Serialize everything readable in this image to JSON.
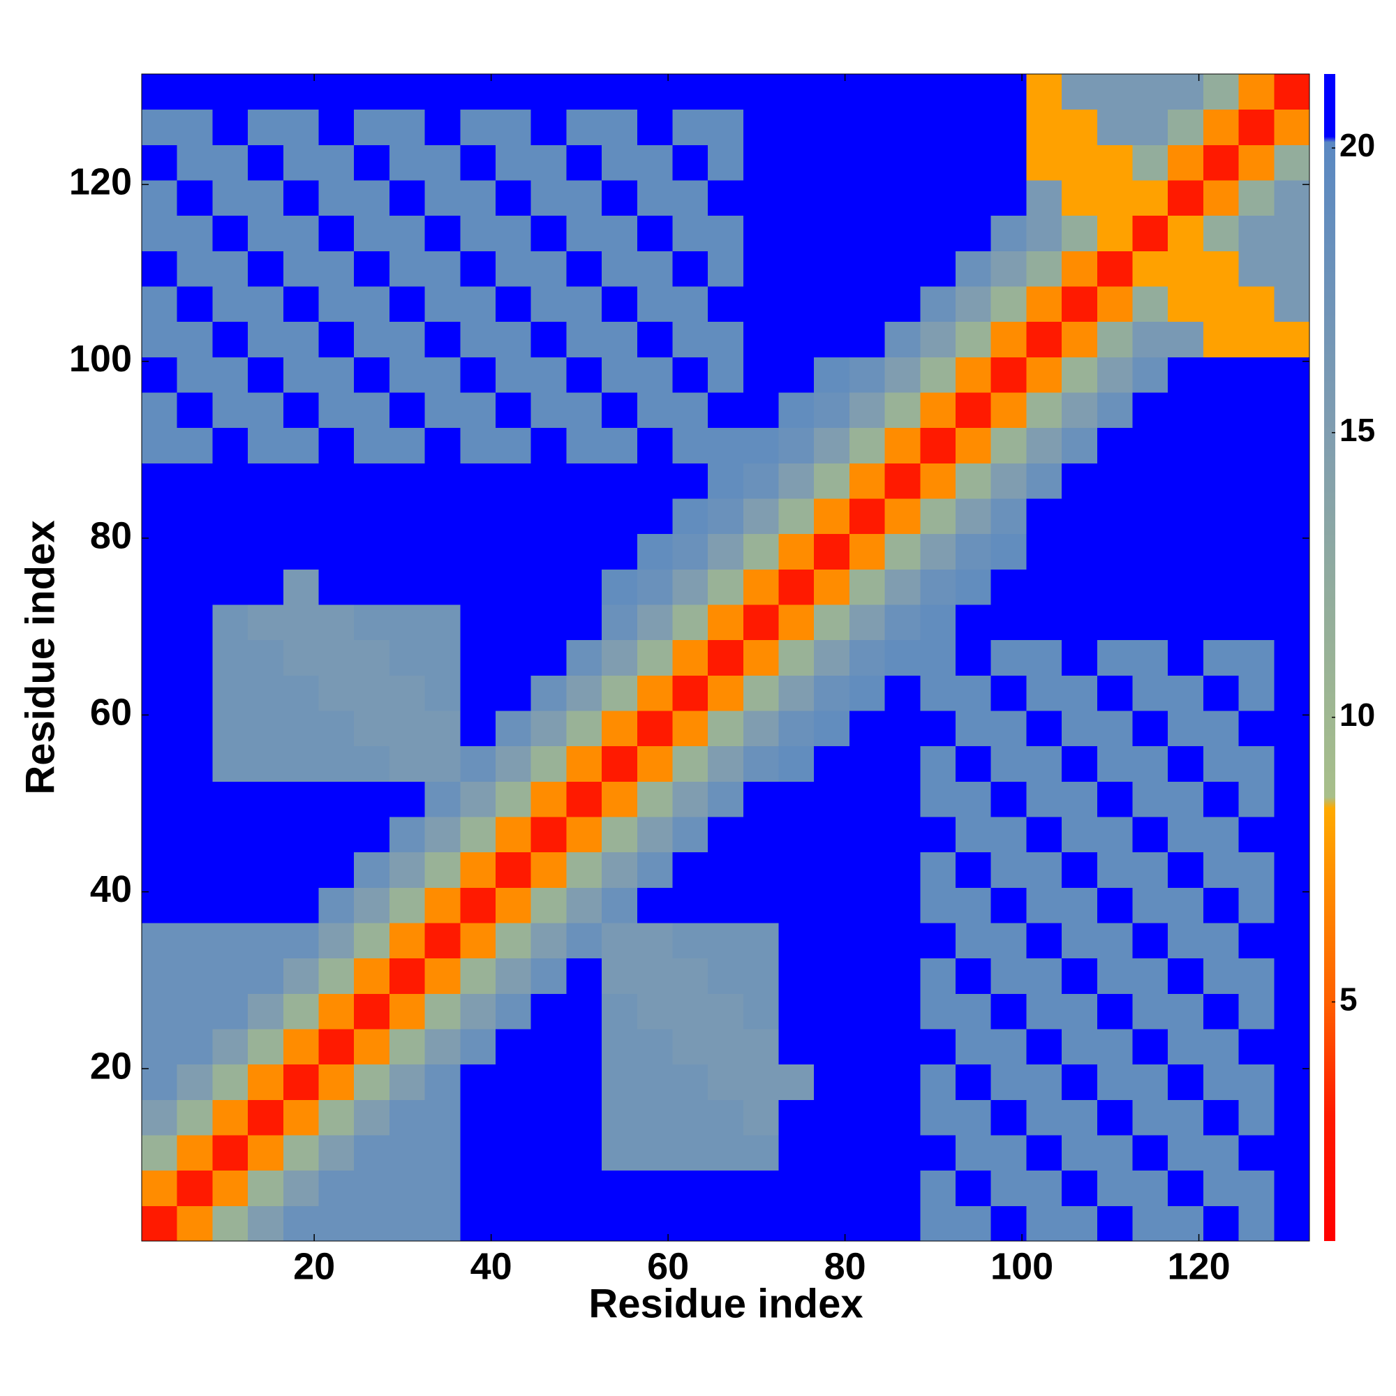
{
  "chart_data": {
    "type": "heatmap",
    "xlabel": "Residue index",
    "ylabel": "Residue index",
    "xlim": [
      0.5,
      132.5
    ],
    "ylim": [
      0.5,
      132.5
    ],
    "xticks": [
      20,
      40,
      60,
      80,
      100,
      120
    ],
    "yticks": [
      20,
      40,
      60,
      80,
      100,
      120
    ],
    "clim": [
      0.8,
      21.3
    ],
    "cticks": [
      5,
      10,
      15,
      20
    ],
    "colorscale": [
      {
        "value": 0.8,
        "color": "#ff0000"
      },
      {
        "value": 3,
        "color": "#ff1a00"
      },
      {
        "value": 5,
        "color": "#ff6000"
      },
      {
        "value": 8.4,
        "color": "#ffaa00"
      },
      {
        "value": 8.6,
        "color": "#a8bf8a"
      },
      {
        "value": 12,
        "color": "#93ad9c"
      },
      {
        "value": 15,
        "color": "#809db0"
      },
      {
        "value": 20.1,
        "color": "#5a88c2"
      },
      {
        "value": 20.2,
        "color": "#0000ff"
      },
      {
        "value": 21.3,
        "color": "#0000ff"
      }
    ],
    "x_bins": [
      0.5,
      4.5,
      8.5,
      12.5,
      16.5,
      20.5,
      24.5,
      28.5,
      32.5,
      36.5,
      40.5,
      44.5,
      48.5,
      52.5,
      56.5,
      60.5,
      64.5,
      68.5,
      72.5,
      76.5,
      80.5,
      84.5,
      88.5,
      92.5,
      96.5,
      100.5,
      104.5,
      108.5,
      112.5,
      116.5,
      120.5,
      124.5,
      128.5,
      132.5
    ],
    "y_bins": [
      0.5,
      4.5,
      8.5,
      12.5,
      16.5,
      20.5,
      24.5,
      28.5,
      32.5,
      36.5,
      40.5,
      44.5,
      48.5,
      52.5,
      56.5,
      60.5,
      64.5,
      68.5,
      72.5,
      76.5,
      80.5,
      84.5,
      88.5,
      92.5,
      96.5,
      100.5,
      104.5,
      108.5,
      112.5,
      116.5,
      120.5,
      124.5,
      128.5,
      132.5
    ],
    "z": [
      [
        3,
        7,
        11,
        15,
        18,
        18,
        18,
        18,
        18,
        21,
        21,
        21,
        21,
        21,
        21,
        21,
        21,
        21,
        21,
        21,
        21,
        21,
        19,
        19,
        21,
        19,
        19,
        21,
        19,
        19,
        21,
        19,
        21
      ],
      [
        7,
        3,
        7,
        11,
        15,
        18,
        18,
        18,
        18,
        21,
        21,
        21,
        21,
        21,
        21,
        21,
        21,
        21,
        21,
        21,
        21,
        21,
        19,
        21,
        19,
        19,
        21,
        19,
        19,
        21,
        19,
        19,
        21
      ],
      [
        11,
        7,
        3,
        7,
        11,
        15,
        18,
        18,
        18,
        21,
        21,
        21,
        21,
        17,
        17,
        17,
        17,
        17,
        21,
        21,
        21,
        21,
        21,
        19,
        19,
        21,
        19,
        19,
        21,
        19,
        19,
        21,
        21
      ],
      [
        15,
        11,
        7,
        3,
        7,
        11,
        15,
        18,
        18,
        21,
        21,
        21,
        21,
        17,
        17,
        17,
        17,
        16,
        21,
        21,
        21,
        21,
        19,
        19,
        21,
        19,
        19,
        21,
        19,
        19,
        21,
        19,
        21
      ],
      [
        18,
        15,
        11,
        7,
        3,
        7,
        11,
        15,
        18,
        21,
        21,
        21,
        21,
        17,
        17,
        17,
        16,
        16,
        16,
        21,
        21,
        21,
        19,
        21,
        19,
        19,
        21,
        19,
        19,
        21,
        19,
        19,
        21
      ],
      [
        18,
        18,
        15,
        11,
        7,
        3,
        7,
        11,
        15,
        18,
        21,
        21,
        21,
        17,
        17,
        16,
        16,
        16,
        21,
        21,
        21,
        21,
        21,
        19,
        19,
        21,
        19,
        19,
        21,
        19,
        19,
        21,
        21
      ],
      [
        18,
        18,
        18,
        15,
        11,
        7,
        3,
        7,
        11,
        15,
        18,
        21,
        21,
        17,
        16,
        16,
        16,
        17,
        21,
        21,
        21,
        21,
        19,
        19,
        21,
        19,
        19,
        21,
        19,
        19,
        21,
        19,
        21
      ],
      [
        18,
        18,
        18,
        18,
        15,
        11,
        7,
        3,
        7,
        11,
        15,
        18,
        21,
        16,
        16,
        16,
        17,
        17,
        21,
        21,
        21,
        21,
        19,
        21,
        19,
        19,
        21,
        19,
        19,
        21,
        19,
        19,
        21
      ],
      [
        18,
        18,
        18,
        18,
        18,
        15,
        11,
        7,
        3,
        7,
        11,
        15,
        18,
        16,
        16,
        17,
        17,
        17,
        21,
        21,
        21,
        21,
        21,
        19,
        19,
        21,
        19,
        19,
        21,
        19,
        19,
        21,
        21
      ],
      [
        21,
        21,
        21,
        21,
        21,
        18,
        15,
        11,
        7,
        3,
        7,
        11,
        15,
        18,
        21,
        21,
        21,
        21,
        21,
        21,
        21,
        21,
        19,
        19,
        21,
        19,
        19,
        21,
        19,
        19,
        21,
        19,
        21
      ],
      [
        21,
        21,
        21,
        21,
        21,
        21,
        18,
        15,
        11,
        7,
        3,
        7,
        11,
        15,
        18,
        21,
        21,
        21,
        21,
        21,
        21,
        21,
        19,
        21,
        19,
        19,
        21,
        19,
        19,
        21,
        19,
        19,
        21
      ],
      [
        21,
        21,
        21,
        21,
        21,
        21,
        21,
        18,
        15,
        11,
        7,
        3,
        7,
        11,
        15,
        18,
        21,
        21,
        21,
        21,
        21,
        21,
        21,
        19,
        19,
        21,
        19,
        19,
        21,
        19,
        19,
        21,
        21
      ],
      [
        21,
        21,
        21,
        21,
        21,
        21,
        21,
        21,
        18,
        15,
        11,
        7,
        3,
        7,
        11,
        15,
        18,
        21,
        21,
        21,
        21,
        21,
        19,
        19,
        21,
        19,
        19,
        21,
        19,
        19,
        21,
        19,
        21
      ],
      [
        21,
        21,
        17,
        17,
        17,
        17,
        17,
        16,
        16,
        18,
        15,
        11,
        7,
        3,
        7,
        11,
        15,
        18,
        19,
        21,
        21,
        21,
        19,
        21,
        19,
        19,
        21,
        19,
        19,
        21,
        19,
        19,
        21
      ],
      [
        21,
        21,
        17,
        17,
        17,
        17,
        16,
        16,
        16,
        21,
        18,
        15,
        11,
        7,
        3,
        7,
        11,
        15,
        18,
        19,
        21,
        21,
        21,
        19,
        19,
        21,
        19,
        19,
        21,
        19,
        19,
        21,
        21
      ],
      [
        21,
        21,
        17,
        17,
        17,
        16,
        16,
        16,
        17,
        21,
        21,
        18,
        15,
        11,
        7,
        3,
        7,
        11,
        15,
        18,
        19,
        21,
        19,
        19,
        21,
        19,
        19,
        21,
        19,
        19,
        21,
        19,
        21
      ],
      [
        21,
        21,
        17,
        17,
        16,
        16,
        16,
        17,
        17,
        21,
        21,
        21,
        18,
        15,
        11,
        7,
        3,
        7,
        11,
        15,
        18,
        19,
        19,
        21,
        19,
        19,
        21,
        19,
        19,
        21,
        19,
        19,
        21
      ],
      [
        21,
        21,
        17,
        16,
        16,
        16,
        17,
        17,
        17,
        21,
        21,
        21,
        21,
        18,
        15,
        11,
        7,
        3,
        7,
        11,
        15,
        18,
        19,
        21,
        21,
        21,
        21,
        21,
        21,
        21,
        21,
        21,
        21
      ],
      [
        21,
        21,
        21,
        21,
        16,
        21,
        21,
        21,
        21,
        21,
        21,
        21,
        21,
        19,
        18,
        15,
        11,
        7,
        3,
        7,
        11,
        15,
        18,
        19,
        21,
        21,
        21,
        21,
        21,
        21,
        21,
        21,
        21
      ],
      [
        21,
        21,
        21,
        21,
        21,
        21,
        21,
        21,
        21,
        21,
        21,
        21,
        21,
        21,
        19,
        18,
        15,
        11,
        7,
        3,
        7,
        11,
        15,
        18,
        19,
        21,
        21,
        21,
        21,
        21,
        21,
        21,
        21
      ],
      [
        21,
        21,
        21,
        21,
        21,
        21,
        21,
        21,
        21,
        21,
        21,
        21,
        21,
        21,
        21,
        19,
        18,
        15,
        11,
        7,
        3,
        7,
        11,
        15,
        18,
        21,
        21,
        21,
        21,
        21,
        21,
        21,
        21
      ],
      [
        21,
        21,
        21,
        21,
        21,
        21,
        21,
        21,
        21,
        21,
        21,
        21,
        21,
        21,
        21,
        21,
        19,
        18,
        15,
        11,
        7,
        3,
        7,
        11,
        15,
        18,
        21,
        21,
        21,
        21,
        21,
        21,
        21
      ],
      [
        19,
        19,
        21,
        19,
        19,
        21,
        19,
        19,
        21,
        19,
        19,
        21,
        19,
        19,
        21,
        19,
        19,
        19,
        18,
        15,
        11,
        7,
        3,
        7,
        11,
        15,
        18,
        21,
        21,
        21,
        21,
        21,
        21
      ],
      [
        19,
        21,
        19,
        19,
        21,
        19,
        19,
        21,
        19,
        19,
        21,
        19,
        19,
        21,
        19,
        19,
        21,
        21,
        19,
        18,
        15,
        11,
        7,
        3,
        7,
        11,
        15,
        18,
        21,
        21,
        21,
        21,
        21
      ],
      [
        21,
        19,
        19,
        21,
        19,
        19,
        21,
        19,
        19,
        21,
        19,
        19,
        21,
        19,
        19,
        21,
        19,
        21,
        21,
        19,
        18,
        15,
        11,
        7,
        3,
        7,
        11,
        15,
        18,
        21,
        21,
        21,
        21
      ],
      [
        19,
        19,
        21,
        19,
        19,
        21,
        19,
        19,
        21,
        19,
        19,
        21,
        19,
        19,
        21,
        19,
        19,
        21,
        21,
        21,
        21,
        18,
        15,
        11,
        7,
        3,
        7,
        12,
        16,
        16,
        8,
        8,
        8
      ],
      [
        19,
        21,
        19,
        19,
        21,
        19,
        19,
        21,
        19,
        19,
        21,
        19,
        19,
        21,
        19,
        19,
        21,
        21,
        21,
        21,
        21,
        21,
        18,
        15,
        11,
        7,
        3,
        7,
        12,
        8,
        8,
        8,
        16
      ],
      [
        21,
        19,
        19,
        21,
        19,
        19,
        21,
        19,
        19,
        21,
        19,
        19,
        21,
        19,
        19,
        21,
        19,
        21,
        21,
        21,
        21,
        21,
        21,
        18,
        15,
        12,
        7,
        3,
        8,
        8,
        8,
        16,
        16
      ],
      [
        19,
        19,
        21,
        19,
        19,
        21,
        19,
        19,
        21,
        19,
        19,
        21,
        19,
        19,
        21,
        19,
        19,
        21,
        21,
        21,
        21,
        21,
        21,
        21,
        18,
        16,
        12,
        8,
        3,
        8,
        12,
        16,
        16
      ],
      [
        19,
        21,
        19,
        19,
        21,
        19,
        19,
        21,
        19,
        19,
        21,
        19,
        19,
        21,
        19,
        19,
        21,
        21,
        21,
        21,
        21,
        21,
        21,
        21,
        21,
        16,
        8,
        8,
        8,
        3,
        7,
        12,
        16
      ],
      [
        21,
        19,
        19,
        21,
        19,
        19,
        21,
        19,
        19,
        21,
        19,
        19,
        21,
        19,
        19,
        21,
        19,
        21,
        21,
        21,
        21,
        21,
        21,
        21,
        21,
        8,
        8,
        8,
        12,
        7,
        3,
        7,
        12
      ],
      [
        19,
        19,
        21,
        19,
        19,
        21,
        19,
        19,
        21,
        19,
        19,
        21,
        19,
        19,
        21,
        19,
        19,
        21,
        21,
        21,
        21,
        21,
        21,
        21,
        21,
        8,
        8,
        16,
        16,
        12,
        7,
        3,
        7
      ],
      [
        21,
        21,
        21,
        21,
        21,
        21,
        21,
        21,
        21,
        21,
        21,
        21,
        21,
        21,
        21,
        21,
        21,
        21,
        21,
        21,
        21,
        21,
        21,
        21,
        21,
        8,
        16,
        16,
        16,
        16,
        12,
        7,
        3
      ]
    ]
  }
}
